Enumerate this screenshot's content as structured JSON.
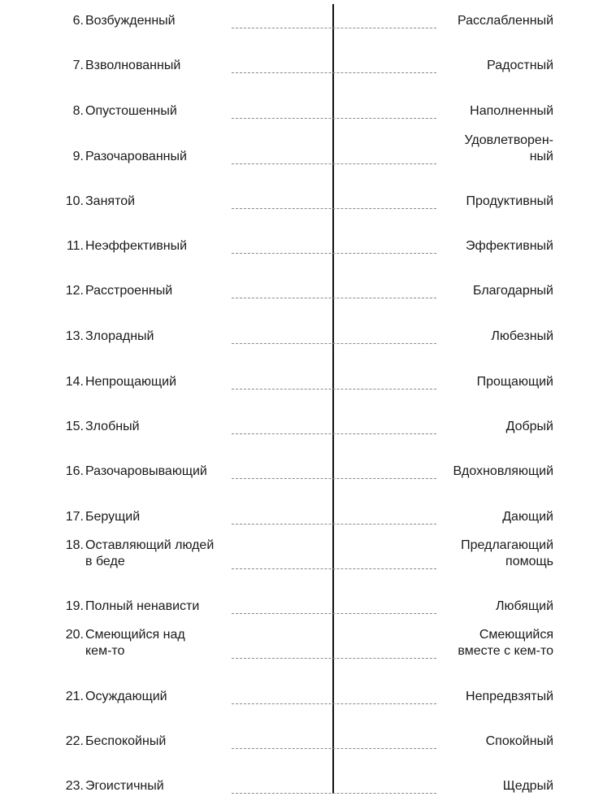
{
  "rows": [
    {
      "num": "6.",
      "left": "Возбужденный",
      "right": "Расслабленный"
    },
    {
      "num": "7.",
      "left": "Взволнованный",
      "right": "Радостный"
    },
    {
      "num": "8.",
      "left": "Опустошенный",
      "right": "Наполненный"
    },
    {
      "num": "9.",
      "left": "Разочарованный",
      "right": "Удовлетворен-\nный"
    },
    {
      "num": "10.",
      "left": "Занятой",
      "right": "Продуктивный"
    },
    {
      "num": "11.",
      "left": "Неэффективный",
      "right": "Эффективный"
    },
    {
      "num": "12.",
      "left": "Расстроенный",
      "right": "Благодарный"
    },
    {
      "num": "13.",
      "left": "Злорадный",
      "right": "Любезный"
    },
    {
      "num": "14.",
      "left": "Непрощающий",
      "right": "Прощающий"
    },
    {
      "num": "15.",
      "left": "Злобный",
      "right": "Добрый"
    },
    {
      "num": "16.",
      "left": "Разочаровывающий",
      "right": "Вдохновляющий"
    },
    {
      "num": "17.",
      "left": "Берущий",
      "right": "Дающий"
    },
    {
      "num": "18.",
      "left": "Оставляющий людей\nв беде",
      "right": "Предлагающий\nпомощь"
    },
    {
      "num": "19.",
      "left": "Полный ненависти",
      "right": "Любящий"
    },
    {
      "num": "20.",
      "left": "Смеющийся над\nкем-то",
      "right": "Смеющийся\nвместе с кем-то"
    },
    {
      "num": "21.",
      "left": "Осуждающий",
      "right": "Непредвзятый"
    },
    {
      "num": "22.",
      "left": "Беспокойный",
      "right": "Спокойный"
    },
    {
      "num": "23.",
      "left": "Эгоистичный",
      "right": "Щедрый"
    }
  ]
}
